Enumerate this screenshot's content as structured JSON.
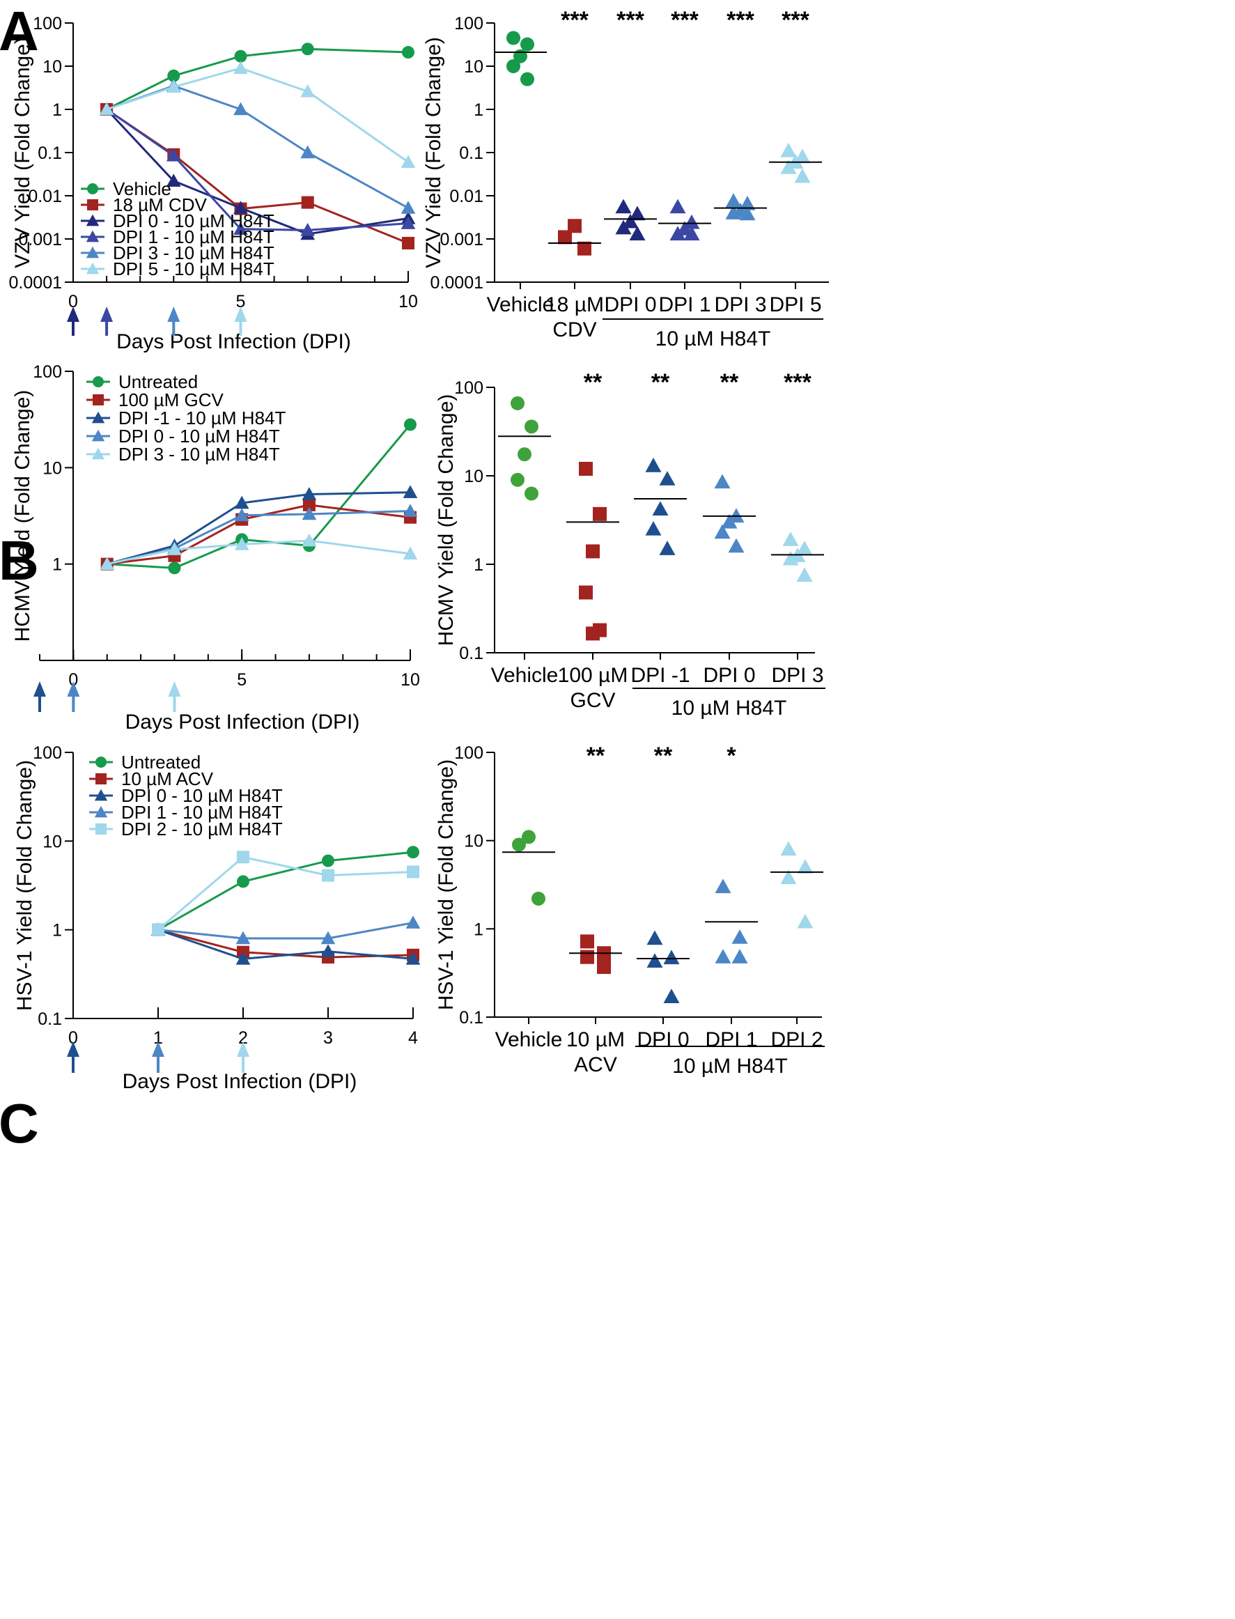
{
  "colors": {
    "green": "#169a4c",
    "red": "#a3231f",
    "navy": "#21297a",
    "indigo": "#3b47a3",
    "darkblue": "#1f4f8f",
    "blue": "#4d86c6",
    "lightblue": "#9fd7ec",
    "green_pt": "#3ea33a"
  },
  "panels": [
    {
      "letter": "A",
      "line_chart": {
        "type": "line",
        "ylabel": "VZV Yield (Fold Change)",
        "xlabel": "Days Post Infection (DPI)",
        "yscale": "log",
        "ylim": [
          0.0001,
          100
        ],
        "yticks": [
          "100",
          "10",
          "1",
          "0.1",
          "0.01",
          "0.001",
          "0.0001"
        ],
        "xlim": [
          0,
          10
        ],
        "xticks_major": [
          "0",
          "5",
          "10"
        ],
        "xminor_count": 10,
        "arrows": [
          {
            "x": 0,
            "color": "navy"
          },
          {
            "x": 1,
            "color": "indigo"
          },
          {
            "x": 3,
            "color": "blue"
          },
          {
            "x": 5,
            "color": "lightblue"
          }
        ],
        "series": [
          {
            "name": "Vehicle",
            "marker": "circle",
            "color": "green",
            "x": [
              1,
              3,
              5,
              7,
              10
            ],
            "values": [
              1,
              6,
              17,
              25,
              21
            ]
          },
          {
            "name": "18 µM CDV",
            "marker": "square",
            "color": "red",
            "x": [
              1,
              3,
              5,
              7,
              10
            ],
            "values": [
              1,
              0.09,
              0.005,
              0.007,
              0.0008
            ]
          },
          {
            "name": "DPI 0 - 10 µM H84T",
            "marker": "triangle",
            "color": "navy",
            "x": [
              1,
              3,
              5,
              7,
              10
            ],
            "values": [
              1,
              0.022,
              0.0052,
              0.0013,
              0.003
            ]
          },
          {
            "name": "DPI 1 - 10 µM H84T",
            "marker": "triangle",
            "color": "indigo",
            "x": [
              1,
              3,
              5,
              7,
              10
            ],
            "values": [
              1,
              0.085,
              0.0017,
              0.0016,
              0.0023
            ]
          },
          {
            "name": "DPI 3 - 10 µM H84T",
            "marker": "triangle",
            "color": "blue",
            "x": [
              1,
              3,
              5,
              7,
              10
            ],
            "values": [
              1,
              3.5,
              1,
              0.1,
              0.0052
            ]
          },
          {
            "name": "DPI 5 - 10 µM H84T",
            "marker": "triangle",
            "color": "lightblue",
            "x": [
              1,
              3,
              5,
              7,
              10
            ],
            "values": [
              1,
              3.3,
              9,
              2.6,
              0.06
            ]
          }
        ]
      },
      "dot_chart": {
        "type": "scatter",
        "ylabel": "VZV Yield (Fold Change)",
        "yscale": "log",
        "ylim": [
          0.0001,
          100
        ],
        "yticks": [
          "100",
          "10",
          "1",
          "0.1",
          "0.01",
          "0.001",
          "0.0001"
        ],
        "group_label": "10 µM H84T",
        "groups": [
          {
            "label": [
              "Vehicle"
            ],
            "marker": "circle",
            "color": "green",
            "values": [
              45,
              32,
              17,
              10,
              5
            ],
            "mean": 21,
            "sig": "",
            "bracket": false
          },
          {
            "label": [
              "18 µM",
              "CDV"
            ],
            "marker": "square",
            "color": "red",
            "values": [
              0.002,
              0.0011,
              0.0006
            ],
            "mean": 0.0008,
            "sig": "***",
            "bracket": false
          },
          {
            "label": [
              "DPI 0"
            ],
            "marker": "triangle",
            "color": "navy",
            "values": [
              0.0055,
              0.0038,
              0.0025,
              0.0018,
              0.0013
            ],
            "mean": 0.0029,
            "sig": "***",
            "bracket": true
          },
          {
            "label": [
              "DPI 1"
            ],
            "marker": "triangle",
            "color": "indigo",
            "values": [
              0.0055,
              0.0024,
              0.0017,
              0.0013,
              0.0013
            ],
            "mean": 0.0023,
            "sig": "***",
            "bracket": true
          },
          {
            "label": [
              "DPI 3"
            ],
            "marker": "triangle",
            "color": "blue",
            "values": [
              0.0075,
              0.0065,
              0.0045,
              0.004,
              0.0038
            ],
            "mean": 0.0052,
            "sig": "***",
            "bracket": true
          },
          {
            "label": [
              "DPI 5"
            ],
            "marker": "triangle",
            "color": "lightblue",
            "values": [
              0.11,
              0.08,
              0.06,
              0.045,
              0.028
            ],
            "mean": 0.06,
            "sig": "***",
            "bracket": true
          }
        ]
      }
    },
    {
      "letter": "B",
      "line_chart": {
        "type": "line",
        "ylabel": "HCMV Yield (Fold Change)",
        "xlabel": "Days Post Infection (DPI)",
        "yscale": "log",
        "ylim": [
          0.1,
          100
        ],
        "yticks": [
          "100",
          "10",
          "1"
        ],
        "xlim": [
          -1,
          10
        ],
        "xticks_major": [
          "0",
          "5",
          "10"
        ],
        "xminor_count": 11,
        "arrows": [
          {
            "x": -1,
            "color": "darkblue"
          },
          {
            "x": 0,
            "color": "blue"
          },
          {
            "x": 3,
            "color": "lightblue"
          }
        ],
        "series": [
          {
            "name": "Untreated",
            "marker": "circle",
            "color": "green",
            "x": [
              1,
              3,
              5,
              7,
              10
            ],
            "values": [
              1,
              0.91,
              1.8,
              1.55,
              28
            ]
          },
          {
            "name": "100 µM GCV",
            "marker": "square",
            "color": "red",
            "x": [
              1,
              3,
              5,
              7,
              10
            ],
            "values": [
              1,
              1.22,
              2.9,
              4.1,
              3.05
            ]
          },
          {
            "name": "DPI -1 - 10 µM H84T",
            "marker": "triangle",
            "color": "darkblue",
            "x": [
              1,
              3,
              5,
              7,
              10
            ],
            "values": [
              1,
              1.55,
              4.3,
              5.3,
              5.55
            ]
          },
          {
            "name": "DPI 0 - 10 µM H84T",
            "marker": "triangle",
            "color": "blue",
            "x": [
              1,
              3,
              5,
              7,
              10
            ],
            "values": [
              1,
              1.45,
              3.2,
              3.3,
              3.55
            ]
          },
          {
            "name": "DPI 3 - 10 µM H84T",
            "marker": "triangle",
            "color": "lightblue",
            "x": [
              1,
              3,
              5,
              7,
              10
            ],
            "values": [
              1,
              1.42,
              1.6,
              1.75,
              1.28
            ]
          }
        ]
      },
      "dot_chart": {
        "type": "scatter",
        "ylabel": "HCMV Yield (Fold Change)",
        "yscale": "log",
        "ylim": [
          0.1,
          100
        ],
        "yticks": [
          "100",
          "10",
          "1",
          "0.1"
        ],
        "group_label": "10 µM H84T",
        "groups": [
          {
            "label": [
              "Vehicle"
            ],
            "marker": "circle",
            "color": "green_pt",
            "values": [
              66,
              36,
              17.5,
              9,
              6.3
            ],
            "mean": 28,
            "sig": "",
            "bracket": false
          },
          {
            "label": [
              "100 µM",
              "GCV"
            ],
            "marker": "square",
            "color": "red",
            "values": [
              12,
              3.7,
              1.4,
              0.48,
              0.18,
              0.165
            ],
            "mean": 3,
            "sig": "**",
            "bracket": false
          },
          {
            "label": [
              "DPI -1"
            ],
            "marker": "triangle",
            "color": "darkblue",
            "values": [
              13,
              9.2,
              4.2,
              2.5,
              1.5
            ],
            "mean": 5.5,
            "sig": "**",
            "bracket": true
          },
          {
            "label": [
              "DPI 0"
            ],
            "marker": "triangle",
            "color": "blue",
            "values": [
              8.5,
              3.5,
              3,
              2.3,
              1.6
            ],
            "mean": 3.5,
            "sig": "**",
            "bracket": true
          },
          {
            "label": [
              "DPI 3"
            ],
            "marker": "triangle",
            "color": "lightblue",
            "values": [
              1.9,
              1.5,
              1.25,
              1.15,
              0.75
            ],
            "mean": 1.28,
            "sig": "***",
            "bracket": true
          }
        ]
      }
    },
    {
      "letter": "C",
      "line_chart": {
        "type": "line",
        "ylabel": "HSV-1 Yield (Fold Change)",
        "xlabel": "Days Post Infection (DPI)",
        "yscale": "log",
        "ylim": [
          0.1,
          100
        ],
        "yticks": [
          "100",
          "10",
          "1",
          "0.1"
        ],
        "xlim": [
          0,
          4
        ],
        "xticks_major": [
          "0",
          "1",
          "2",
          "3",
          "4"
        ],
        "xminor_count": 4,
        "arrows": [
          {
            "x": 0,
            "color": "darkblue"
          },
          {
            "x": 1,
            "color": "blue"
          },
          {
            "x": 2,
            "color": "lightblue"
          }
        ],
        "series": [
          {
            "name": "Untreated",
            "marker": "circle",
            "color": "green",
            "x": [
              1,
              2,
              3,
              4
            ],
            "values": [
              1,
              3.5,
              6,
              7.5
            ]
          },
          {
            "name": "10 µM ACV",
            "marker": "square",
            "color": "red",
            "x": [
              1,
              2,
              3,
              4
            ],
            "values": [
              1,
              0.56,
              0.49,
              0.52
            ]
          },
          {
            "name": "DPI 0 - 10 µM H84T",
            "marker": "triangle",
            "color": "darkblue",
            "x": [
              1,
              2,
              3,
              4
            ],
            "values": [
              1,
              0.47,
              0.57,
              0.47
            ]
          },
          {
            "name": "DPI 1 - 10 µM H84T",
            "marker": "triangle",
            "color": "blue",
            "x": [
              1,
              2,
              3,
              4
            ],
            "values": [
              1,
              0.8,
              0.8,
              1.2
            ]
          },
          {
            "name": "DPI 2 - 10 µM H84T",
            "marker": "square",
            "color": "lightblue",
            "x": [
              1,
              2,
              3,
              4
            ],
            "values": [
              1,
              6.6,
              4.1,
              4.5
            ]
          }
        ]
      },
      "dot_chart": {
        "type": "scatter",
        "ylabel": "HSV-1 Yield (Fold Change)",
        "yscale": "log",
        "ylim": [
          0.1,
          100
        ],
        "yticks": [
          "100",
          "10",
          "1",
          "0.1"
        ],
        "group_label": "10 µM H84T",
        "groups": [
          {
            "label": [
              "Vehicle"
            ],
            "marker": "circle",
            "color": "green_pt",
            "values": [
              11,
              9,
              2.2
            ],
            "mean": 7.4,
            "sig": "",
            "bracket": false
          },
          {
            "label": [
              "10 µM",
              "ACV"
            ],
            "marker": "square",
            "color": "red",
            "values": [
              0.72,
              0.53,
              0.48,
              0.37
            ],
            "mean": 0.53,
            "sig": "**",
            "bracket": false
          },
          {
            "label": [
              "DPI 0"
            ],
            "marker": "triangle",
            "color": "darkblue",
            "values": [
              0.78,
              0.47,
              0.43,
              0.17
            ],
            "mean": 0.46,
            "sig": "**",
            "bracket": true
          },
          {
            "label": [
              "DPI 1"
            ],
            "marker": "triangle",
            "color": "blue",
            "values": [
              3,
              0.8,
              0.48,
              0.48
            ],
            "mean": 1.2,
            "sig": "*",
            "bracket": true
          },
          {
            "label": [
              "DPI 2"
            ],
            "marker": "triangle",
            "color": "lightblue",
            "values": [
              8,
              5,
              3.8,
              1.2
            ],
            "mean": 4.4,
            "sig": "",
            "bracket": true
          }
        ]
      }
    }
  ]
}
